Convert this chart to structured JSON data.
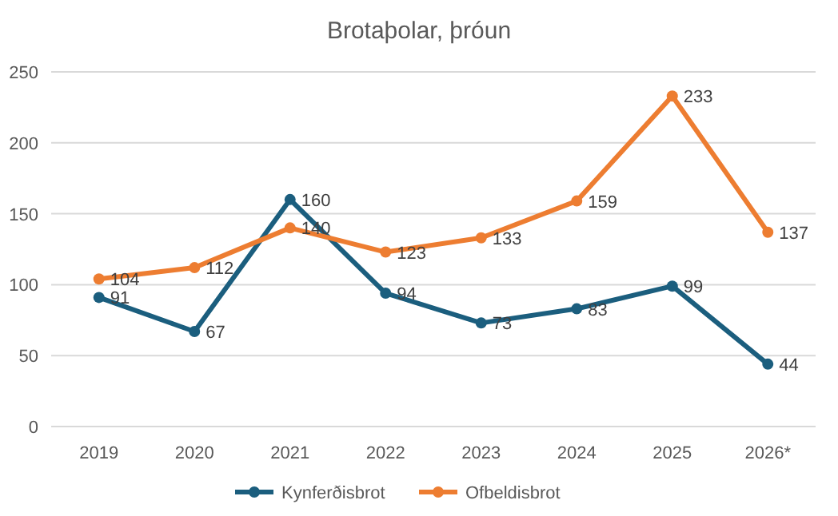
{
  "chart_data": {
    "type": "line",
    "title": "Brotaþolar, þróun",
    "categories": [
      "2019",
      "2020",
      "2021",
      "2022",
      "2023",
      "2024",
      "2025",
      "2026*"
    ],
    "series": [
      {
        "name": "Kynferðisbrot",
        "color": "#1b5e7e",
        "values": [
          91,
          67,
          160,
          94,
          73,
          83,
          99,
          44
        ]
      },
      {
        "name": "Ofbeldisbrot",
        "color": "#ed7d31",
        "values": [
          104,
          112,
          140,
          123,
          133,
          159,
          233,
          137
        ]
      }
    ],
    "ylim": [
      0,
      250
    ],
    "yticks": [
      0,
      50,
      100,
      150,
      200,
      250
    ],
    "grid": "y",
    "legend": "bottom",
    "marker": "circle",
    "line_style": "solid",
    "data_labels": true
  }
}
